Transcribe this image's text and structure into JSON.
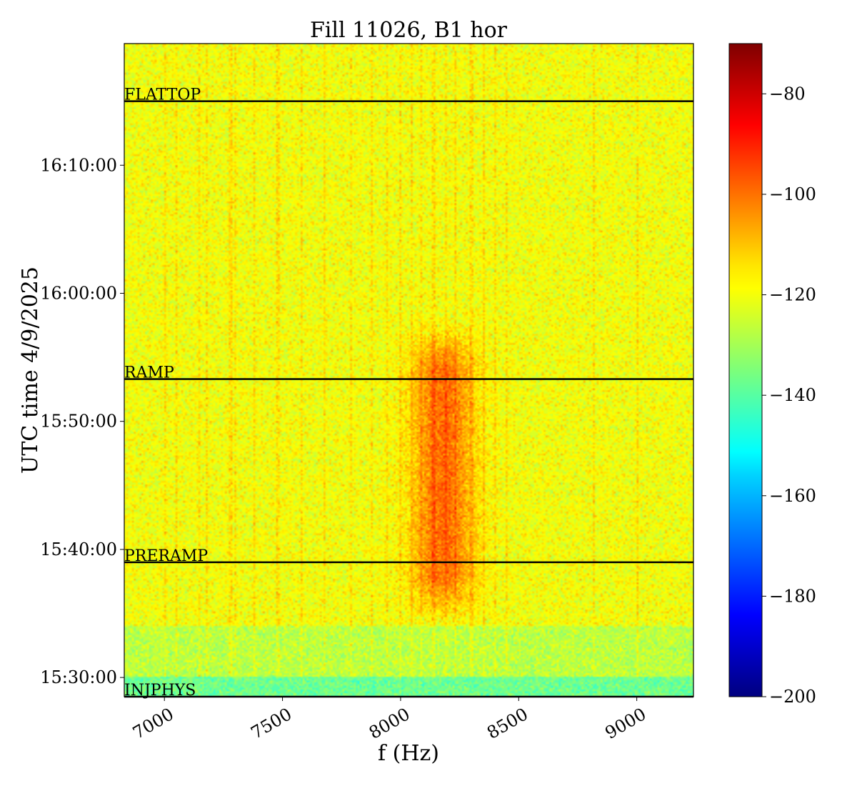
{
  "chart_data": {
    "type": "heatmap",
    "title": "Fill 11026, B1 hor",
    "xlabel": "f (Hz)",
    "ylabel": "UTC time 4/9/2025",
    "xlim": [
      6830,
      9240
    ],
    "ylim_minutes_after_15_00": [
      28.5,
      79.5
    ],
    "x_ticks": [
      {
        "value": 7000,
        "label": "7000"
      },
      {
        "value": 7500,
        "label": "7500"
      },
      {
        "value": 8000,
        "label": "8000"
      },
      {
        "value": 8500,
        "label": "8500"
      },
      {
        "value": 9000,
        "label": "9000"
      }
    ],
    "y_ticks": [
      {
        "minutes": 30,
        "label": "15:30:00"
      },
      {
        "minutes": 40,
        "label": "15:40:00"
      },
      {
        "minutes": 50,
        "label": "15:50:00"
      },
      {
        "minutes": 60,
        "label": "16:00:00"
      },
      {
        "minutes": 70,
        "label": "16:10:00"
      }
    ],
    "colorbar": {
      "colormap": "jet",
      "range": [
        -200,
        -70
      ],
      "ticks": [
        {
          "value": -80,
          "label": "−80"
        },
        {
          "value": -100,
          "label": "−100"
        },
        {
          "value": -120,
          "label": "−120"
        },
        {
          "value": -140,
          "label": "−140"
        },
        {
          "value": -160,
          "label": "−160"
        },
        {
          "value": -180,
          "label": "−180"
        },
        {
          "value": -200,
          "label": "−200"
        }
      ]
    },
    "phase_markers": [
      {
        "label": "INJPHYS",
        "minutes": 28.5
      },
      {
        "label": "PRERAMP",
        "minutes": 39.0
      },
      {
        "label": "RAMP",
        "minutes": 53.3
      },
      {
        "label": "FLATTOP",
        "minutes": 75.0
      }
    ],
    "background_level": -120,
    "low_signal_regions": [
      {
        "from_minutes": 28.5,
        "to_minutes": 30.0,
        "level": -137
      },
      {
        "from_minutes": 30.0,
        "to_minutes": 34.0,
        "level": -127
      }
    ],
    "broadband_hump": {
      "center_hz": 8180,
      "width_hz": 130,
      "from_minutes": 34.0,
      "to_minutes": 58.0,
      "peak_level": -100
    },
    "spectral_lines_hz": [
      7000,
      7050,
      7150,
      7180,
      7280,
      7300,
      7380,
      7480,
      7580,
      7680,
      7790,
      7880,
      7940,
      8000,
      8050,
      8090,
      8140,
      8190,
      8230,
      8300,
      8350,
      8400,
      8450,
      8820,
      9000
    ]
  }
}
